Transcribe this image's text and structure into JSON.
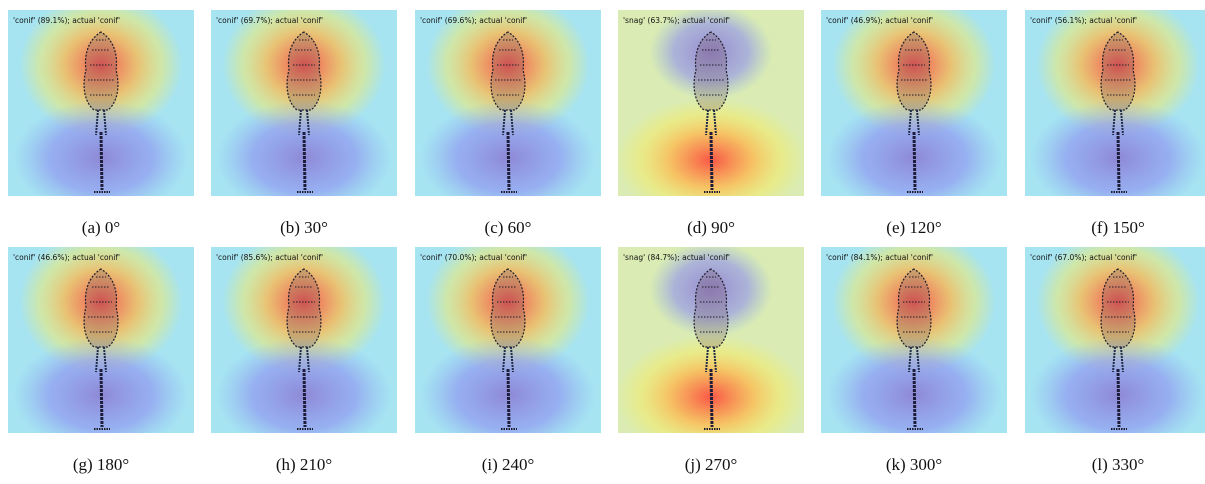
{
  "panels": [
    {
      "label": "'conif' (89.1%); actual 'conif'",
      "caption": "(a) 0°"
    },
    {
      "label": "'conif' (69.7%); actual 'conif'",
      "caption": "(b) 30°"
    },
    {
      "label": "'conif' (69.6%); actual 'conif'",
      "caption": "(c) 60°"
    },
    {
      "label": "'snag' (63.7%); actual 'conif'",
      "caption": "(d) 90°"
    },
    {
      "label": "'conif' (46.9%); actual 'conif'",
      "caption": "(e) 120°"
    },
    {
      "label": "'conif' (56.1%); actual 'conif'",
      "caption": "(f) 150°"
    },
    {
      "label": "'conif' (46.6%); actual 'conif'",
      "caption": "(g) 180°"
    },
    {
      "label": "'conif' (85.6%); actual 'conif'",
      "caption": "(h) 210°"
    },
    {
      "label": "'conif' (70.0%); actual 'conif'",
      "caption": "(i) 240°"
    },
    {
      "label": "'snag' (84.7%); actual 'conif'",
      "caption": "(j) 270°"
    },
    {
      "label": "'conif' (84.1%); actual 'conif'",
      "caption": "(k) 300°"
    },
    {
      "label": "'conif' (67.0%); actual 'conif'",
      "caption": "(l) 330°"
    }
  ]
}
